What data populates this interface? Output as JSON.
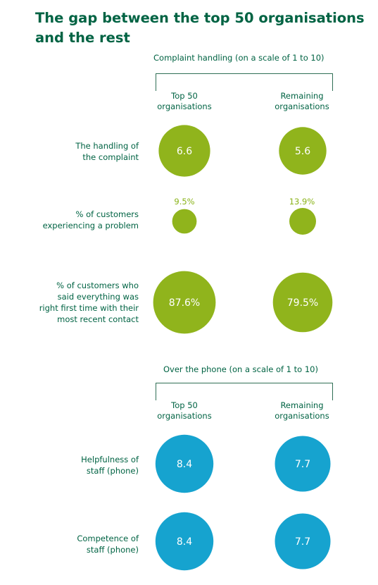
{
  "title_line1": "The gap between the top 50 organisations",
  "title_line2": "and the rest",
  "colors": {
    "green": "#90b41c",
    "blue": "#16a3cf",
    "text": "#006343"
  },
  "chart_data": [
    {
      "type": "bubble",
      "header": "Complaint handling (on a scale of 1 to 10)",
      "columns": [
        {
          "line1": "Top 50",
          "line2": "organisations"
        },
        {
          "line1": "Remaining",
          "line2": "organisations"
        }
      ],
      "rows": [
        {
          "label_lines": [
            "The handling of",
            "the complaint"
          ],
          "values": [
            "6.6",
            "5.6"
          ],
          "label_inside": true
        },
        {
          "label_lines": [
            "% of customers",
            "experiencing a problem"
          ],
          "values": [
            "9.5%",
            "13.9%"
          ],
          "label_inside": false
        },
        {
          "label_lines": [
            "% of customers who",
            "said everything was",
            "right first time with their",
            "most recent contact"
          ],
          "values": [
            "87.6%",
            "79.5%"
          ],
          "label_inside": true
        }
      ]
    },
    {
      "type": "bubble",
      "header": "Over the phone (on a scale of 1 to 10)",
      "columns": [
        {
          "line1": "Top 50",
          "line2": "organisations"
        },
        {
          "line1": "Remaining",
          "line2": "organisations"
        }
      ],
      "rows": [
        {
          "label_lines": [
            "Helpfulness of",
            "staff (phone)"
          ],
          "values": [
            "8.4",
            "7.7"
          ],
          "label_inside": true
        },
        {
          "label_lines": [
            "Competence of",
            "staff (phone)"
          ],
          "values": [
            "8.4",
            "7.7"
          ],
          "label_inside": true
        }
      ]
    }
  ]
}
